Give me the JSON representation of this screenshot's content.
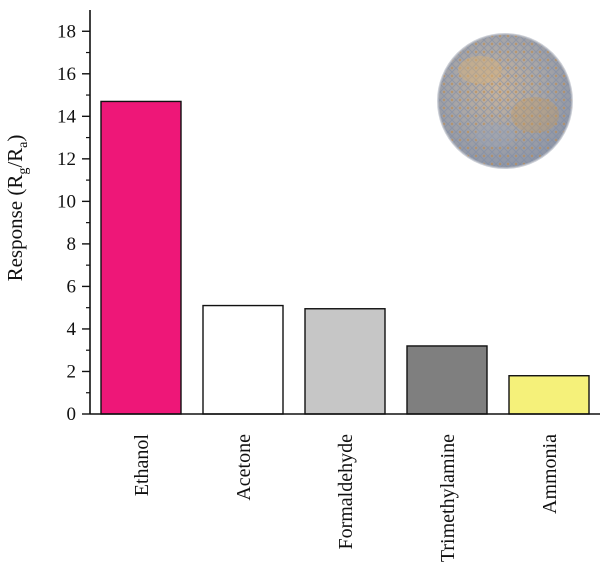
{
  "chart_data": {
    "type": "bar",
    "categories": [
      "Ethanol",
      "Acetone",
      "Formaldehyde",
      "Trimethylamine",
      "Ammonia"
    ],
    "values": [
      14.7,
      5.1,
      4.95,
      3.2,
      1.8
    ],
    "colors": [
      "#ee1778",
      "#ffffff",
      "#c6c6c6",
      "#7f7f7f",
      "#f5f17a"
    ],
    "title": "",
    "xlabel": "",
    "ylabel": {
      "main": "Response (R",
      "sub1": "g",
      "mid": "/R",
      "sub2": "a",
      "end": ")"
    },
    "ylim": [
      0,
      19
    ],
    "yticks": [
      0,
      2,
      4,
      6,
      8,
      10,
      12,
      14,
      16,
      18
    ],
    "grid": false,
    "legend": "none",
    "inset": "nanosphere-micrograph"
  }
}
